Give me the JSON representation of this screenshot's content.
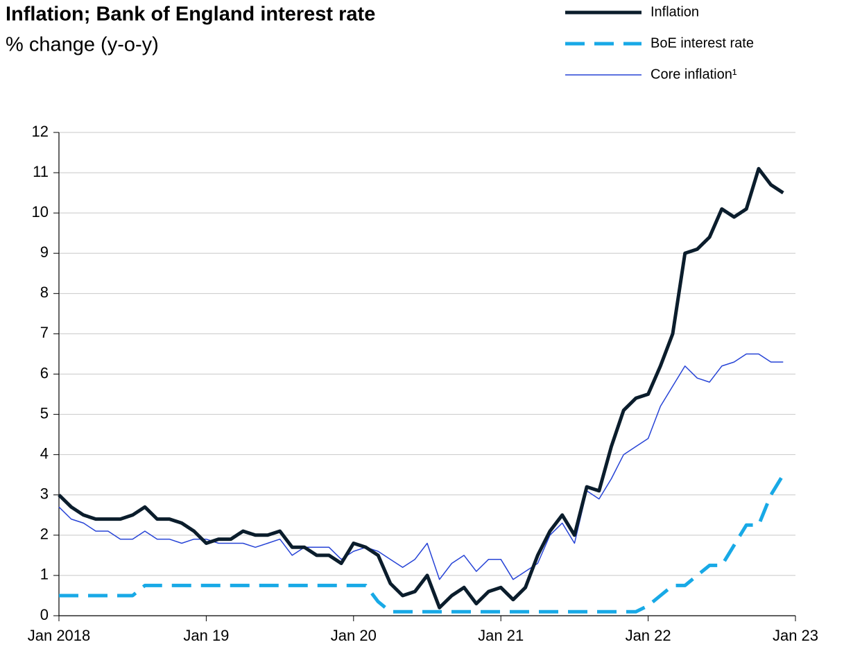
{
  "chart_data": {
    "type": "line",
    "title": "Inflation; Bank of England interest rate",
    "subtitle": "% change (y-o-y)",
    "categories": [
      "Jan 2018",
      null,
      null,
      null,
      null,
      null,
      null,
      null,
      null,
      null,
      null,
      null,
      "Jan 19",
      null,
      null,
      null,
      null,
      null,
      null,
      null,
      null,
      null,
      null,
      null,
      "Jan 20",
      null,
      null,
      null,
      null,
      null,
      null,
      null,
      null,
      null,
      null,
      null,
      "Jan 21",
      null,
      null,
      null,
      null,
      null,
      null,
      null,
      null,
      null,
      null,
      null,
      "Jan 22",
      null,
      null,
      null,
      null,
      null,
      null,
      null,
      null,
      null,
      null,
      null,
      "Jan 23"
    ],
    "series": [
      {
        "name": "Inflation",
        "color": "#0b1d2c",
        "width": 5,
        "dash": "none",
        "values": [
          3.0,
          2.7,
          2.5,
          2.4,
          2.4,
          2.4,
          2.5,
          2.7,
          2.4,
          2.4,
          2.3,
          2.1,
          1.8,
          1.9,
          1.9,
          2.1,
          2.0,
          2.0,
          2.1,
          1.7,
          1.7,
          1.5,
          1.5,
          1.3,
          1.8,
          1.7,
          1.5,
          0.8,
          0.5,
          0.6,
          1.0,
          0.2,
          0.5,
          0.7,
          0.3,
          0.6,
          0.7,
          0.4,
          0.7,
          1.5,
          2.1,
          2.5,
          2.0,
          3.2,
          3.1,
          4.2,
          5.1,
          5.4,
          5.5,
          6.2,
          7.0,
          9.0,
          9.1,
          9.4,
          10.1,
          9.9,
          10.1,
          11.1,
          10.7,
          10.5,
          null
        ]
      },
      {
        "name": "BoE interest rate",
        "color": "#18a9e6",
        "width": 5,
        "dash": "28 14",
        "values": [
          0.5,
          0.5,
          0.5,
          0.5,
          0.5,
          0.5,
          0.5,
          0.75,
          0.75,
          0.75,
          0.75,
          0.75,
          0.75,
          0.75,
          0.75,
          0.75,
          0.75,
          0.75,
          0.75,
          0.75,
          0.75,
          0.75,
          0.75,
          0.75,
          0.75,
          0.75,
          0.35,
          0.1,
          0.1,
          0.1,
          0.1,
          0.1,
          0.1,
          0.1,
          0.1,
          0.1,
          0.1,
          0.1,
          0.1,
          0.1,
          0.1,
          0.1,
          0.1,
          0.1,
          0.1,
          0.1,
          0.1,
          0.1,
          0.25,
          0.5,
          0.75,
          0.75,
          1.0,
          1.25,
          1.25,
          1.75,
          2.25,
          2.25,
          3.0,
          3.5,
          null
        ]
      },
      {
        "name": "Core inflation¹",
        "color": "#2643d6",
        "width": 1.5,
        "dash": "none",
        "values": [
          2.7,
          2.4,
          2.3,
          2.1,
          2.1,
          1.9,
          1.9,
          2.1,
          1.9,
          1.9,
          1.8,
          1.9,
          1.9,
          1.8,
          1.8,
          1.8,
          1.7,
          1.8,
          1.9,
          1.5,
          1.7,
          1.7,
          1.7,
          1.4,
          1.6,
          1.7,
          1.6,
          1.4,
          1.2,
          1.4,
          1.8,
          0.9,
          1.3,
          1.5,
          1.1,
          1.4,
          1.4,
          0.9,
          1.1,
          1.3,
          2.0,
          2.3,
          1.8,
          3.1,
          2.9,
          3.4,
          4.0,
          4.2,
          4.4,
          5.2,
          5.7,
          6.2,
          5.9,
          5.8,
          6.2,
          6.3,
          6.5,
          6.5,
          6.3,
          6.3,
          null
        ]
      }
    ],
    "ylim": [
      0,
      12
    ],
    "yticks": [
      0,
      1,
      2,
      3,
      4,
      5,
      6,
      7,
      8,
      9,
      10,
      11,
      12
    ],
    "grid": true,
    "legend": "top-right"
  }
}
